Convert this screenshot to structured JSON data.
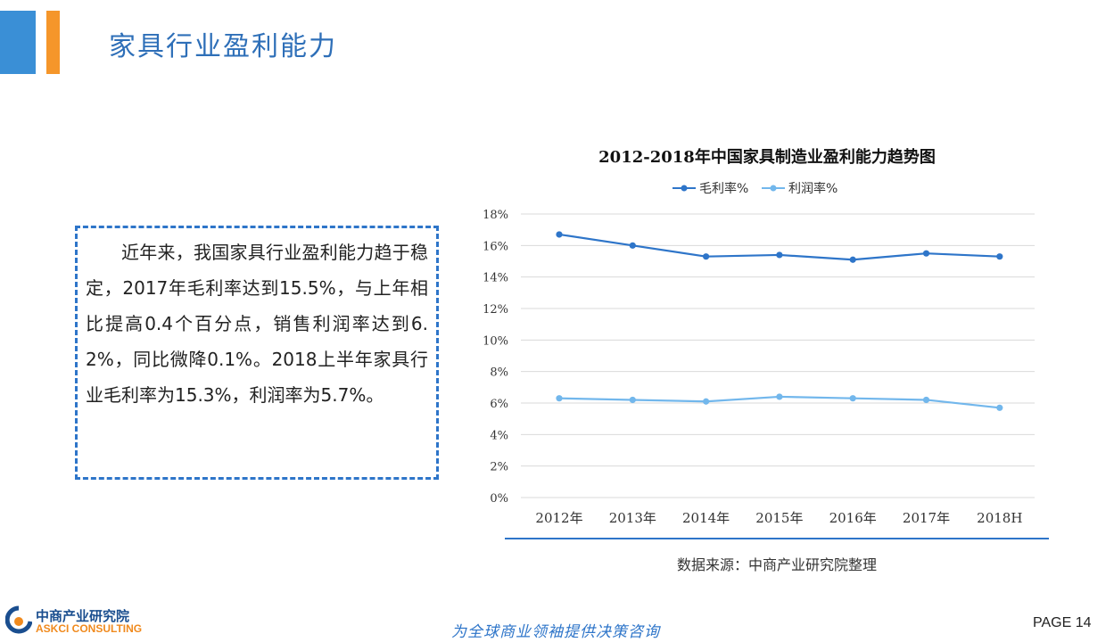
{
  "header": {
    "title": "家具行业盈利能力"
  },
  "summary": {
    "text": "近年来，我国家具行业盈利能力趋于稳定，2017年毛利率达到15.5%，与上年相比提高0.4个百分点，销售利润率达到6.2%，同比微降0.1%。2018上半年家具行业毛利率为15.3%，利润率为5.7%。"
  },
  "colors": {
    "accent_blue": "#3a8fd6",
    "accent_orange": "#f5962a",
    "title_blue": "#2e6fb8",
    "series_dark": "#2e75c9",
    "series_light": "#72b7ec"
  },
  "chart_data": {
    "type": "line",
    "title": "2012-2018年中国家具制造业盈利能力趋势图",
    "categories": [
      "2012年",
      "2013年",
      "2014年",
      "2015年",
      "2016年",
      "2017年",
      "2018H"
    ],
    "series": [
      {
        "name": "毛利率%",
        "values": [
          16.7,
          16.0,
          15.3,
          15.4,
          15.1,
          15.5,
          15.3
        ],
        "color": "#2e75c9"
      },
      {
        "name": "利润率%",
        "values": [
          6.3,
          6.2,
          6.1,
          6.4,
          6.3,
          6.2,
          5.7
        ],
        "color": "#72b7ec"
      }
    ],
    "ylim": [
      0,
      18
    ],
    "yticks": [
      "0%",
      "2%",
      "4%",
      "6%",
      "8%",
      "10%",
      "12%",
      "14%",
      "16%",
      "18%"
    ],
    "grid": true,
    "legend": "top"
  },
  "source": {
    "text": "数据来源：中商产业研究院整理"
  },
  "footer": {
    "brand_cn": "中商产业研究院",
    "brand_en": "ASKCI CONSULTING",
    "slogan": "为全球商业领袖提供决策咨询",
    "page_label": "PAGE  14"
  },
  "icons": {
    "logo": "askci-logo-icon"
  }
}
